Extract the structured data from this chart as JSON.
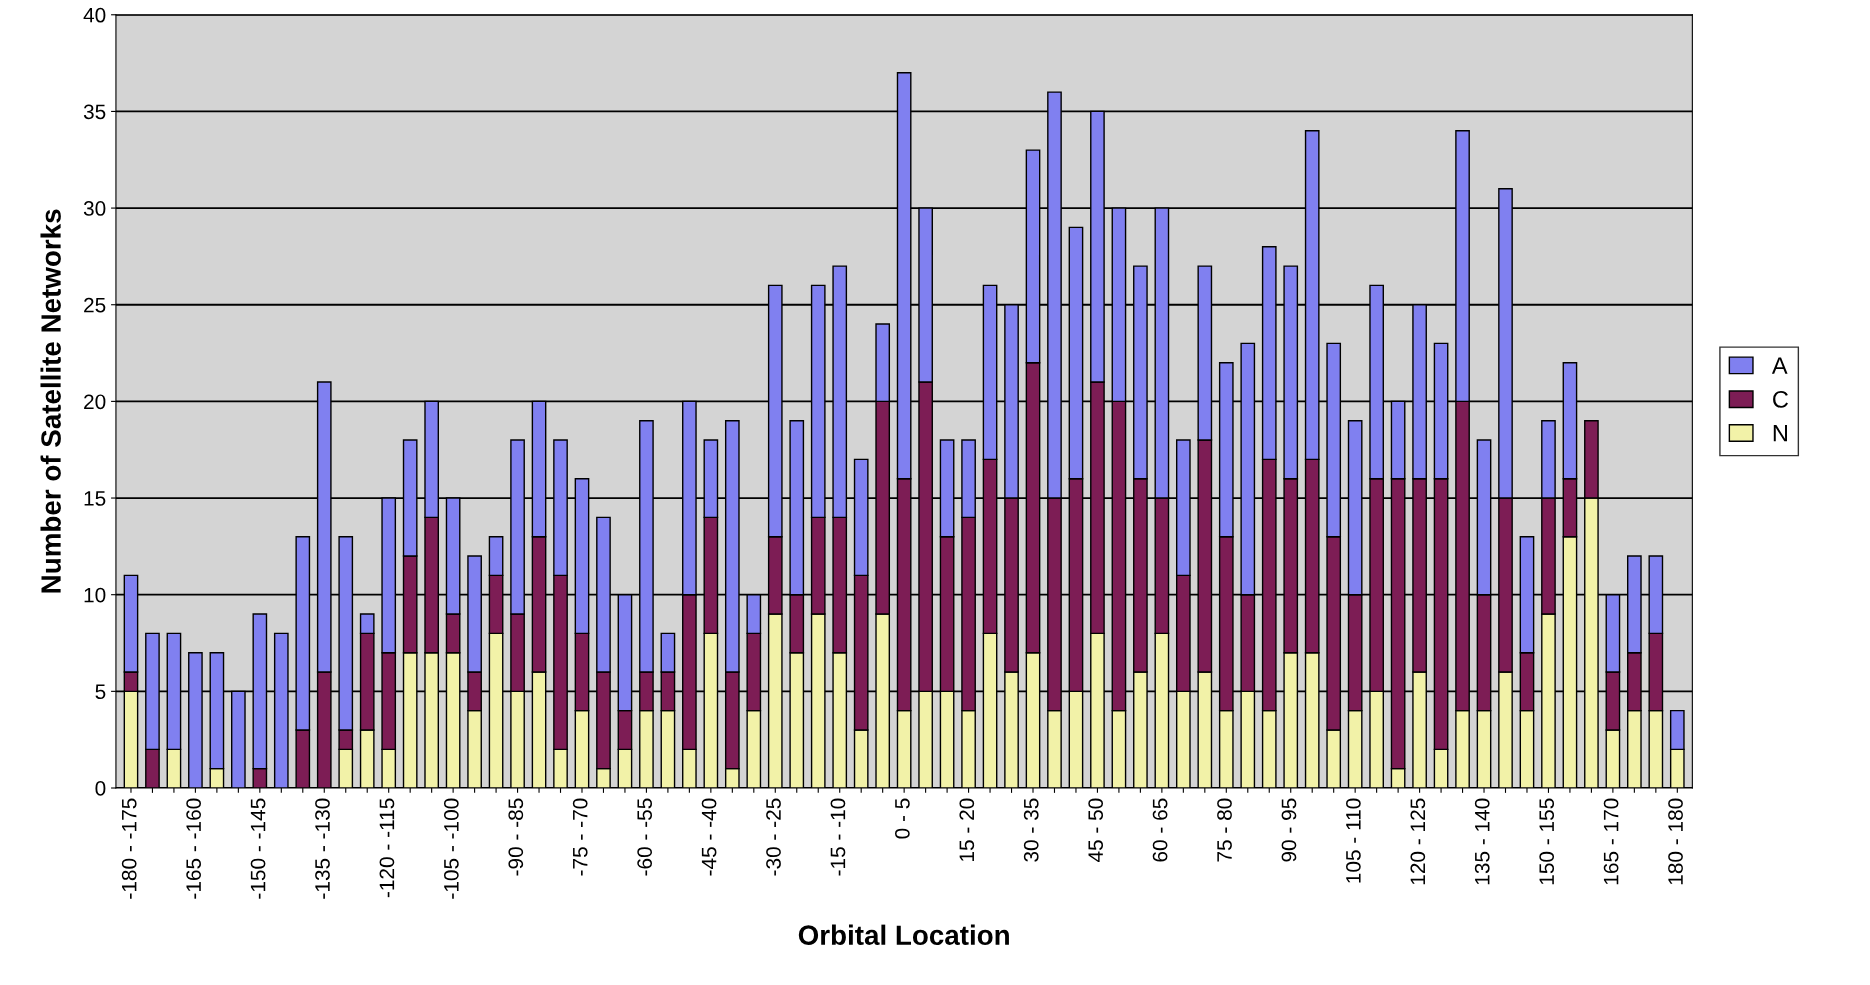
{
  "chart_data": {
    "type": "bar",
    "stacked": true,
    "xlabel": "Orbital Location",
    "ylabel": "Number of Satellite Networks",
    "categories": [
      "-180 - -175",
      null,
      null,
      "-165 - -160",
      null,
      null,
      "-150 - -145",
      null,
      null,
      "-135 - -130",
      null,
      null,
      "-120 - -115",
      null,
      null,
      "-105 - -100",
      null,
      null,
      "-90 - -85",
      null,
      null,
      "-75 - -70",
      null,
      null,
      "-60 - -55",
      null,
      null,
      "-45 - -40",
      null,
      null,
      "-30 - -25",
      null,
      null,
      "-15 - -10",
      null,
      null,
      "0 - 5",
      null,
      null,
      "15 - 20",
      null,
      null,
      "30 - 35",
      null,
      null,
      "45 - 50",
      null,
      null,
      "60 - 65",
      null,
      null,
      "75 - 80",
      null,
      null,
      "90 - 95",
      null,
      null,
      "105 - 110",
      null,
      null,
      "120 - 125",
      null,
      null,
      "135 - 140",
      null,
      null,
      "150 - 155",
      null,
      null,
      "165 - 170",
      null,
      null,
      "180 - 180"
    ],
    "series": [
      {
        "name": "N",
        "color": "#f2f2a8",
        "values": [
          5,
          0,
          2,
          0,
          1,
          0,
          0,
          0,
          0,
          0,
          2,
          3,
          2,
          7,
          7,
          7,
          4,
          8,
          5,
          6,
          2,
          4,
          1,
          2,
          4,
          4,
          2,
          8,
          1,
          4,
          9,
          7,
          9,
          7,
          3,
          9,
          4,
          5,
          5,
          4,
          8,
          6,
          7,
          4,
          5,
          8,
          4,
          6,
          8,
          5,
          6,
          4,
          5,
          4,
          7,
          7,
          3,
          4,
          5,
          1,
          6,
          2,
          4,
          4,
          6,
          4,
          9,
          13,
          15,
          3,
          4,
          4,
          2
        ]
      },
      {
        "name": "C",
        "color": "#7d1d55",
        "values": [
          1,
          2,
          0,
          0,
          0,
          0,
          1,
          0,
          3,
          6,
          1,
          5,
          5,
          5,
          7,
          2,
          2,
          3,
          4,
          7,
          9,
          4,
          5,
          2,
          2,
          2,
          8,
          6,
          5,
          4,
          4,
          3,
          5,
          7,
          8,
          11,
          12,
          16,
          8,
          10,
          9,
          9,
          15,
          11,
          11,
          13,
          16,
          10,
          7,
          6,
          12,
          9,
          5,
          13,
          9,
          10,
          10,
          6,
          11,
          15,
          10,
          14,
          16,
          6,
          9,
          3,
          6,
          3,
          4,
          3,
          3,
          4,
          0
        ]
      },
      {
        "name": "A",
        "color": "#8080f0",
        "values": [
          5,
          6,
          6,
          7,
          6,
          5,
          8,
          8,
          10,
          15,
          10,
          1,
          8,
          6,
          6,
          6,
          6,
          2,
          9,
          7,
          7,
          8,
          8,
          6,
          13,
          2,
          10,
          4,
          13,
          2,
          13,
          9,
          12,
          13,
          6,
          4,
          21,
          9,
          5,
          4,
          9,
          10,
          11,
          21,
          13,
          14,
          10,
          11,
          15,
          7,
          9,
          9,
          13,
          11,
          11,
          17,
          10,
          9,
          10,
          4,
          9,
          7,
          14,
          8,
          16,
          6,
          4,
          6,
          0,
          4,
          5,
          4,
          2
        ]
      }
    ],
    "ylim": [
      0,
      40
    ],
    "yticks": [
      0,
      5,
      10,
      15,
      20,
      25,
      30,
      35,
      40
    ],
    "grid": "y",
    "legend": "right"
  }
}
